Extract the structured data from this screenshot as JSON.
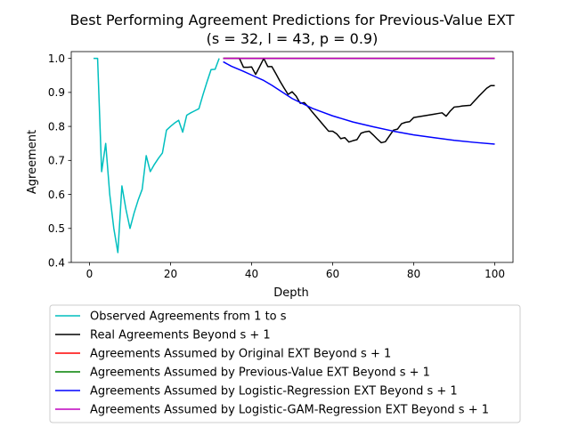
{
  "chart_data": {
    "type": "line",
    "title": "Best Performing Agreement Predictions for Previous-Value EXT",
    "subtitle": "(s = 32, l = 43, p = 0.9)",
    "xlabel": "Depth",
    "ylabel": "Agreement",
    "xlim": [
      -4.5,
      104.5
    ],
    "ylim": [
      0.4,
      1.02
    ],
    "xticks": [
      0,
      20,
      40,
      60,
      80,
      100
    ],
    "yticks": [
      0.4,
      0.5,
      0.6,
      0.7,
      0.8,
      0.9,
      1.0
    ],
    "xtick_labels": [
      "0",
      "20",
      "40",
      "60",
      "80",
      "100"
    ],
    "ytick_labels": [
      "0.4",
      "0.5",
      "0.6",
      "0.7",
      "0.8",
      "0.9",
      "1.0"
    ],
    "grid": false,
    "legend_placement": "below plot",
    "series": [
      {
        "name": "Observed Agreements from 1 to s",
        "color": "#00bfbf",
        "x": [
          1,
          2,
          3,
          4,
          5,
          6,
          7,
          8,
          9,
          10,
          11,
          12,
          13,
          14,
          15,
          16,
          17,
          18,
          19,
          20,
          21,
          22,
          23,
          24,
          25,
          26,
          27,
          28,
          29,
          30,
          31,
          32
        ],
        "y": [
          1.0,
          1.0,
          0.667,
          0.75,
          0.6,
          0.5,
          0.429,
          0.625,
          0.556,
          0.5,
          0.545,
          0.583,
          0.615,
          0.714,
          0.667,
          0.688,
          0.706,
          0.722,
          0.789,
          0.8,
          0.81,
          0.818,
          0.783,
          0.833,
          0.84,
          0.846,
          0.852,
          0.893,
          0.931,
          0.967,
          0.968,
          1.0
        ]
      },
      {
        "name": "Real Agreements Beyond s + 1",
        "color": "#000000",
        "x": [
          33,
          34,
          35,
          36,
          37,
          38,
          39,
          40,
          41,
          42,
          43,
          44,
          45,
          46,
          47,
          48,
          49,
          50,
          51,
          52,
          53,
          54,
          55,
          56,
          57,
          58,
          59,
          60,
          61,
          62,
          63,
          64,
          65,
          66,
          67,
          68,
          69,
          70,
          71,
          72,
          73,
          74,
          75,
          76,
          77,
          78,
          79,
          80,
          81,
          82,
          83,
          84,
          85,
          86,
          87,
          88,
          89,
          90,
          91,
          92,
          93,
          94,
          95,
          96,
          97,
          98,
          99,
          100
        ],
        "y": [
          1.0,
          1.0,
          1.0,
          1.0,
          1.0,
          0.974,
          0.974,
          0.975,
          0.953,
          0.976,
          1.0,
          0.976,
          0.976,
          0.955,
          0.933,
          0.913,
          0.894,
          0.902,
          0.889,
          0.868,
          0.87,
          0.857,
          0.842,
          0.828,
          0.814,
          0.8,
          0.786,
          0.786,
          0.778,
          0.764,
          0.767,
          0.754,
          0.758,
          0.761,
          0.78,
          0.784,
          0.786,
          0.775,
          0.763,
          0.752,
          0.755,
          0.772,
          0.789,
          0.792,
          0.808,
          0.812,
          0.814,
          0.826,
          0.828,
          0.83,
          0.832,
          0.834,
          0.836,
          0.838,
          0.84,
          0.83,
          0.845,
          0.857,
          0.858,
          0.86,
          0.861,
          0.862,
          0.875,
          0.888,
          0.9,
          0.912,
          0.92,
          0.92
        ]
      },
      {
        "name": "Agreements Assumed by Original EXT Beyond s + 1",
        "color": "#ff0000",
        "x": [
          33,
          100
        ],
        "y": [
          1.0,
          1.0
        ]
      },
      {
        "name": "Agreements Assumed by Previous-Value EXT Beyond s + 1",
        "color": "#008000",
        "x": [
          33,
          100
        ],
        "y": [
          1.0,
          1.0
        ]
      },
      {
        "name": "Agreements Assumed by Logistic-Regression EXT Beyond s + 1",
        "color": "#0000ff",
        "x": [
          33,
          35,
          38,
          40,
          43,
          45,
          50,
          55,
          60,
          65,
          70,
          75,
          80,
          85,
          90,
          95,
          100
        ],
        "y": [
          0.99,
          0.977,
          0.962,
          0.951,
          0.935,
          0.921,
          0.882,
          0.853,
          0.831,
          0.813,
          0.799,
          0.786,
          0.775,
          0.767,
          0.759,
          0.753,
          0.748
        ]
      },
      {
        "name": "Agreements Assumed by Logistic-GAM-Regression EXT Beyond s + 1",
        "color": "#bf00bf",
        "x": [
          33,
          100
        ],
        "y": [
          1.0,
          1.0
        ]
      }
    ]
  }
}
